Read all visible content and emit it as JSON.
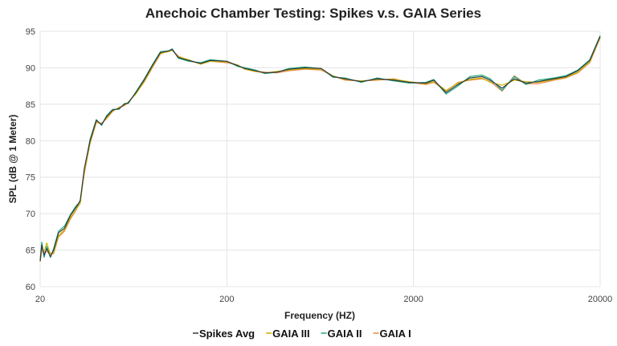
{
  "chart_data": {
    "type": "line",
    "title": "Anechoic Chamber Testing: Spikes v.s. GAIA Series",
    "xlabel": "Frequency (HZ)",
    "ylabel": "SPL (dB @ 1 Meter)",
    "xscale": "log",
    "xlim": [
      20,
      20000
    ],
    "ylim": [
      60,
      95
    ],
    "xticks": [
      20,
      200,
      2000,
      20000
    ],
    "yticks": [
      60,
      65,
      70,
      75,
      80,
      85,
      90,
      95
    ],
    "grid": true,
    "legend_position": "bottom",
    "x": [
      20,
      20.4,
      21,
      21.7,
      22.7,
      23.6,
      25.1,
      27,
      29.1,
      31.2,
      32.8,
      34.5,
      37,
      40,
      42.7,
      45.3,
      48.9,
      52.9,
      56.5,
      59.3,
      65.2,
      72,
      79.8,
      88.2,
      97.3,
      102,
      110,
      125,
      145,
      163,
      200,
      228,
      250,
      284,
      320,
      370,
      430,
      525,
      640,
      740,
      860,
      1050,
      1280,
      1570,
      1900,
      2330,
      2570,
      2990,
      3460,
      4010,
      4660,
      5150,
      5970,
      6930,
      8010,
      9290,
      11300,
      13100,
      15200,
      17600,
      20000
    ],
    "series": [
      {
        "name": "Spikes Avg",
        "color": "#2f3a45",
        "values": [
          63.5,
          65.7,
          64.3,
          65.2,
          64.1,
          65.0,
          67.4,
          68.0,
          69.8,
          70.9,
          71.8,
          76.2,
          80.0,
          82.8,
          82.2,
          83.3,
          84.2,
          84.4,
          85.0,
          85.2,
          86.6,
          88.3,
          90.3,
          92.1,
          92.3,
          92.5,
          91.4,
          91.0,
          90.6,
          91.0,
          90.9,
          90.3,
          89.9,
          89.6,
          89.3,
          89.4,
          89.8,
          90.0,
          89.9,
          88.8,
          88.5,
          88.1,
          88.5,
          88.3,
          88.0,
          87.9,
          88.3,
          86.6,
          87.7,
          88.6,
          88.8,
          88.3,
          87.2,
          88.5,
          87.9,
          88.1,
          88.5,
          88.8,
          89.6,
          91.0,
          94.3
        ]
      },
      {
        "name": "GAIA III",
        "color": "#c9b200",
        "values": [
          63.8,
          65.2,
          64.8,
          66.0,
          64.4,
          64.6,
          67.0,
          67.8,
          69.5,
          70.6,
          71.4,
          75.8,
          79.7,
          82.6,
          82.3,
          83.1,
          84.1,
          84.5,
          84.9,
          85.3,
          86.4,
          88.1,
          90.1,
          92.0,
          92.2,
          92.4,
          91.5,
          91.1,
          90.5,
          90.9,
          90.8,
          90.4,
          89.8,
          89.5,
          89.3,
          89.5,
          89.7,
          89.9,
          89.8,
          88.9,
          88.4,
          88.2,
          88.4,
          88.4,
          88.1,
          87.8,
          88.1,
          86.9,
          87.9,
          88.4,
          88.6,
          88.0,
          87.6,
          88.3,
          88.1,
          88.0,
          88.4,
          88.7,
          89.4,
          90.8,
          94.2
        ]
      },
      {
        "name": "GAIA II",
        "color": "#1fa87a",
        "values": [
          63.6,
          66.1,
          64.0,
          65.5,
          64.0,
          65.2,
          67.6,
          68.3,
          69.9,
          71.1,
          71.6,
          76.0,
          80.2,
          82.9,
          82.1,
          83.4,
          84.3,
          84.3,
          85.1,
          85.1,
          86.7,
          88.4,
          90.4,
          92.2,
          92.3,
          92.6,
          91.3,
          90.9,
          90.7,
          91.1,
          90.9,
          90.2,
          90.0,
          89.7,
          89.2,
          89.4,
          89.9,
          90.1,
          89.9,
          88.7,
          88.6,
          88.0,
          88.6,
          88.2,
          87.9,
          88.0,
          88.4,
          86.4,
          87.5,
          88.8,
          89.0,
          88.5,
          86.9,
          88.8,
          87.7,
          88.3,
          88.6,
          88.9,
          89.7,
          91.1,
          94.4
        ]
      },
      {
        "name": "GAIA I",
        "color": "#e8874a",
        "values": [
          63.4,
          65.0,
          64.6,
          64.8,
          64.6,
          64.5,
          66.8,
          67.6,
          69.3,
          70.5,
          71.9,
          75.5,
          79.6,
          82.5,
          82.4,
          83.0,
          84.0,
          84.6,
          84.8,
          85.2,
          86.5,
          88.0,
          90.0,
          91.9,
          92.3,
          92.4,
          91.6,
          91.0,
          90.5,
          90.9,
          90.7,
          90.4,
          89.8,
          89.5,
          89.4,
          89.3,
          89.6,
          89.8,
          89.7,
          88.9,
          88.3,
          88.2,
          88.3,
          88.5,
          88.0,
          87.7,
          88.0,
          86.8,
          88.0,
          88.3,
          88.5,
          88.1,
          86.8,
          88.9,
          87.8,
          87.8,
          88.3,
          88.6,
          89.3,
          90.7,
          94.1
        ]
      }
    ]
  }
}
